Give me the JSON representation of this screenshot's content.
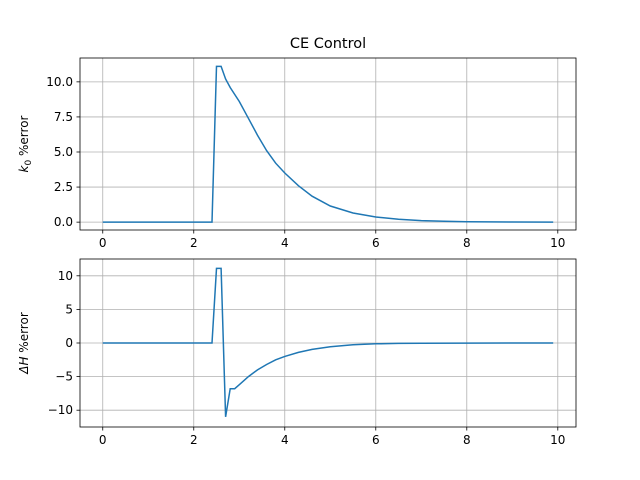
{
  "figure": {
    "title": "CE Control"
  },
  "chart_data": [
    {
      "type": "line",
      "title": "CE Control",
      "ylabel_main": "k",
      "ylabel_sub": "0",
      "ylabel_rest": " %error",
      "xlim": [
        -0.5,
        10.4
      ],
      "ylim": [
        -0.56,
        11.7
      ],
      "xticks": [
        0,
        2,
        4,
        6,
        8,
        10
      ],
      "yticks": [
        0.0,
        2.5,
        5.0,
        7.5,
        10.0
      ],
      "ytick_labels": [
        "0.0",
        "2.5",
        "5.0",
        "7.5",
        "10.0"
      ],
      "grid": true,
      "color": "#1f77b4",
      "x": [
        0,
        2.0,
        2.4,
        2.5,
        2.6,
        2.7,
        2.8,
        3.0,
        3.2,
        3.4,
        3.6,
        3.8,
        4.0,
        4.3,
        4.6,
        5.0,
        5.5,
        6.0,
        6.5,
        7.0,
        7.5,
        8.0,
        9.0,
        9.9
      ],
      "y": [
        0,
        0,
        0,
        11.1,
        11.1,
        10.2,
        9.6,
        8.6,
        7.4,
        6.2,
        5.1,
        4.2,
        3.5,
        2.6,
        1.85,
        1.15,
        0.65,
        0.37,
        0.2,
        0.11,
        0.06,
        0.03,
        0.01,
        0.0
      ]
    },
    {
      "type": "line",
      "ylabel_main": "ΔH",
      "ylabel_rest": " %error",
      "xlim": [
        -0.5,
        10.4
      ],
      "ylim": [
        -12.5,
        12.5
      ],
      "xticks": [
        0,
        2,
        4,
        6,
        8,
        10
      ],
      "xtick_labels": [
        "0",
        "2",
        "4",
        "6",
        "8",
        "10"
      ],
      "yticks": [
        -10,
        -5,
        0,
        5,
        10
      ],
      "ytick_labels": [
        "−10",
        "−5",
        "0",
        "5",
        "10"
      ],
      "grid": true,
      "color": "#1f77b4",
      "x": [
        0,
        2.0,
        2.4,
        2.5,
        2.6,
        2.7,
        2.8,
        2.9,
        3.0,
        3.2,
        3.4,
        3.6,
        3.8,
        4.0,
        4.3,
        4.6,
        5.0,
        5.5,
        6.0,
        6.5,
        7.0,
        8.0,
        9.0,
        9.9
      ],
      "y": [
        0,
        0,
        0,
        11.1,
        11.1,
        -11.0,
        -6.8,
        -6.8,
        -6.2,
        -5.0,
        -4.0,
        -3.2,
        -2.5,
        -2.0,
        -1.4,
        -0.95,
        -0.55,
        -0.25,
        -0.12,
        -0.06,
        -0.03,
        -0.01,
        0.0,
        0.0
      ]
    }
  ]
}
